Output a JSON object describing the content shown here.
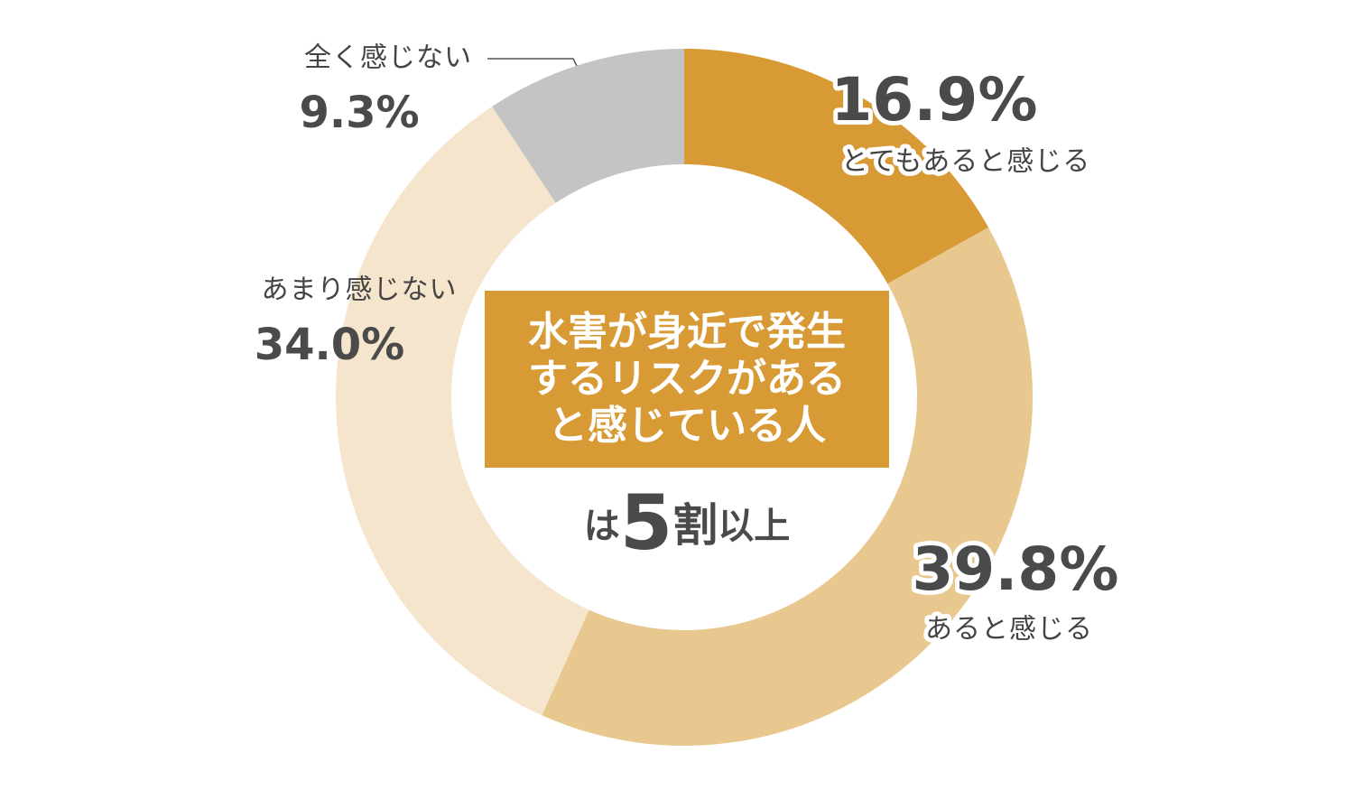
{
  "chart_data": {
    "type": "donut",
    "categories": [
      "とてもあると感じる",
      "あると感じる",
      "あまり感じない",
      "全く感じない"
    ],
    "values": [
      16.9,
      39.8,
      34.0,
      9.3
    ],
    "value_labels": [
      "16.9%",
      "39.8%",
      "34.0%",
      "9.3%"
    ],
    "colors": [
      "#d89a35",
      "#e9c88f",
      "#f5e5cc",
      "#c4c4c4"
    ],
    "center_title": [
      "水害が身近で発生",
      "するリスクがある",
      "と感じている人"
    ],
    "center_note": [
      "は",
      "5",
      "割",
      "以上"
    ]
  }
}
